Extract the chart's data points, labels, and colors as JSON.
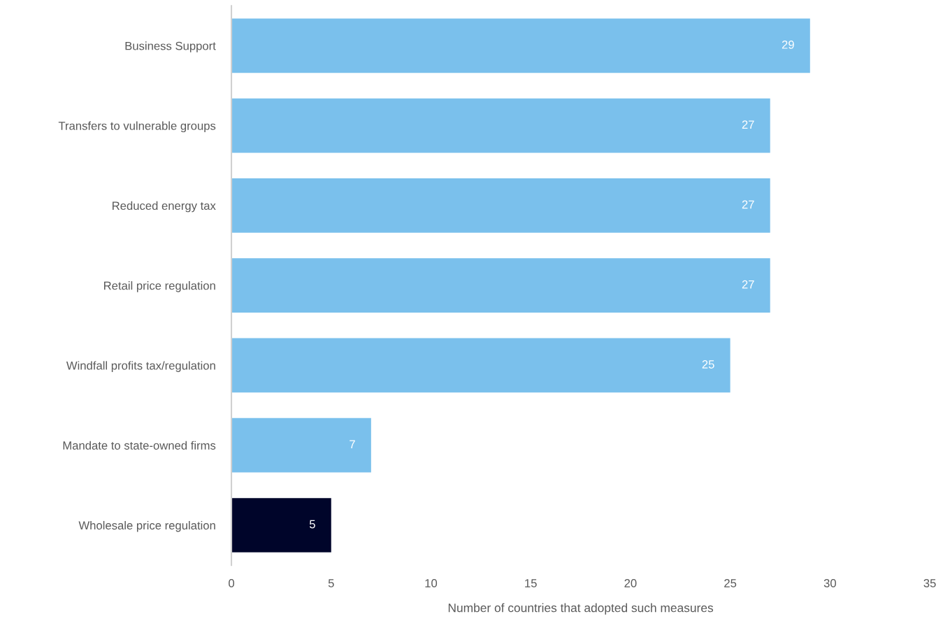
{
  "chart_data": {
    "type": "bar",
    "orientation": "horizontal",
    "categories": [
      "Business Support",
      "Transfers to vulnerable groups",
      "Reduced energy tax",
      "Retail price regulation",
      "Windfall profits tax/regulation",
      "Mandate to state-owned firms",
      "Wholesale price regulation"
    ],
    "values": [
      29,
      27,
      27,
      27,
      25,
      7,
      5
    ],
    "colors": [
      "#7ac0ec",
      "#7ac0ec",
      "#7ac0ec",
      "#7ac0ec",
      "#7ac0ec",
      "#7ac0ec",
      "#00052a"
    ],
    "xlabel": "Number of countries that adopted such measures",
    "xlim": [
      0,
      35
    ],
    "xticks": [
      0,
      5,
      10,
      15,
      20,
      25,
      30,
      35
    ],
    "data_labels": true,
    "grid": false,
    "legend": false
  }
}
